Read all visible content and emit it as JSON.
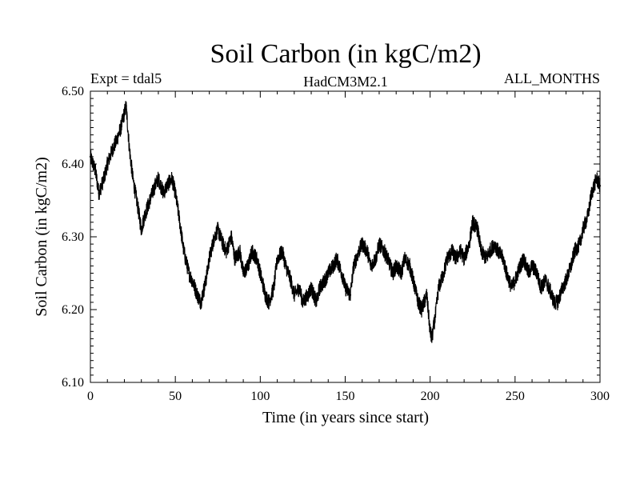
{
  "chart_data": {
    "type": "line",
    "title": "Soil Carbon (in kgC/m2)",
    "subtitle_left": "Expt = tdal5",
    "subtitle_center": "HadCM3M2.1",
    "subtitle_right": "ALL_MONTHS",
    "xlabel": "Time (in years since start)",
    "ylabel": "Soil Carbon (in kgC/m2)",
    "xlim": [
      0,
      300
    ],
    "ylim": [
      6.1,
      6.5
    ],
    "x_ticks": [
      "0",
      "50",
      "100",
      "150",
      "200",
      "250",
      "300"
    ],
    "y_ticks": [
      "6.10",
      "6.20",
      "6.30",
      "6.40",
      "6.50"
    ],
    "grid": false,
    "line_color": "#000000",
    "series": [
      {
        "x": [
          0,
          3,
          5,
          8,
          10,
          13,
          15,
          18,
          20,
          21,
          23,
          25,
          28,
          30,
          32,
          35,
          38,
          40,
          43,
          45,
          48,
          50,
          52,
          55,
          58,
          60,
          63,
          65,
          68,
          70,
          73,
          75,
          78,
          80,
          83,
          85,
          88,
          90,
          93,
          95,
          98,
          100,
          103,
          105,
          108,
          110,
          113,
          115,
          118,
          120,
          123,
          125,
          128,
          130,
          133,
          135,
          138,
          140,
          143,
          145,
          148,
          150,
          153,
          155,
          158,
          160,
          163,
          165,
          168,
          170,
          173,
          175,
          178,
          180,
          183,
          185,
          188,
          190,
          193,
          195,
          198,
          200,
          201,
          203,
          205,
          208,
          210,
          213,
          215,
          218,
          220,
          223,
          225,
          228,
          230,
          233,
          235,
          238,
          240,
          243,
          245,
          248,
          250,
          253,
          255,
          258,
          260,
          263,
          265,
          268,
          270,
          273,
          275,
          278,
          280,
          283,
          285,
          288,
          290,
          293,
          295,
          298,
          300
        ],
        "values": [
          6.41,
          6.39,
          6.36,
          6.38,
          6.4,
          6.42,
          6.43,
          6.45,
          6.47,
          6.48,
          6.42,
          6.38,
          6.34,
          6.31,
          6.33,
          6.35,
          6.37,
          6.38,
          6.36,
          6.37,
          6.38,
          6.36,
          6.33,
          6.28,
          6.25,
          6.24,
          6.22,
          6.21,
          6.24,
          6.27,
          6.3,
          6.31,
          6.29,
          6.28,
          6.3,
          6.27,
          6.28,
          6.25,
          6.26,
          6.28,
          6.27,
          6.25,
          6.22,
          6.21,
          6.23,
          6.27,
          6.28,
          6.26,
          6.24,
          6.22,
          6.23,
          6.21,
          6.22,
          6.23,
          6.21,
          6.23,
          6.24,
          6.25,
          6.26,
          6.27,
          6.25,
          6.23,
          6.22,
          6.26,
          6.28,
          6.29,
          6.28,
          6.26,
          6.27,
          6.29,
          6.28,
          6.27,
          6.25,
          6.26,
          6.25,
          6.27,
          6.26,
          6.24,
          6.21,
          6.2,
          6.22,
          6.17,
          6.16,
          6.19,
          6.23,
          6.25,
          6.27,
          6.28,
          6.27,
          6.28,
          6.27,
          6.29,
          6.32,
          6.31,
          6.28,
          6.27,
          6.28,
          6.29,
          6.28,
          6.27,
          6.25,
          6.23,
          6.24,
          6.26,
          6.27,
          6.25,
          6.26,
          6.25,
          6.23,
          6.24,
          6.23,
          6.21,
          6.21,
          6.23,
          6.24,
          6.26,
          6.28,
          6.29,
          6.31,
          6.33,
          6.36,
          6.38,
          6.37
        ]
      }
    ]
  }
}
